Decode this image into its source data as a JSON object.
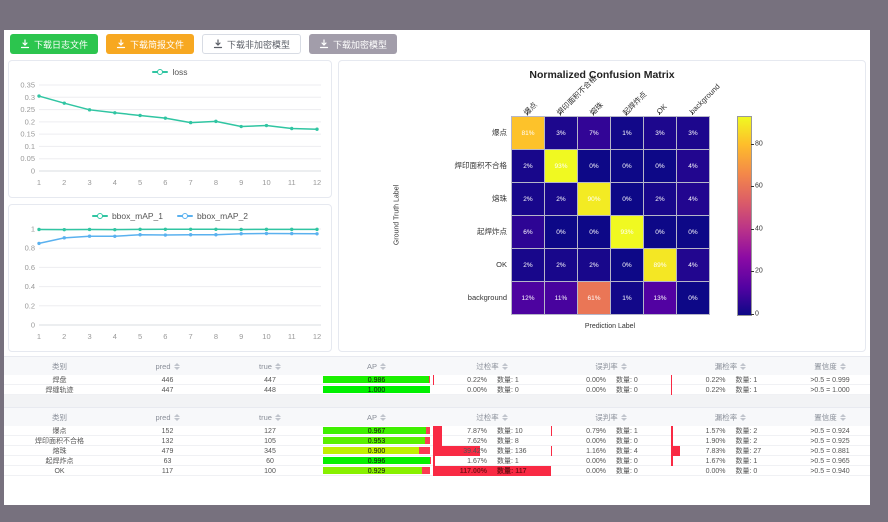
{
  "frame_color": "#77717e",
  "toolbar": {
    "buttons": [
      {
        "label": "下载日志文件",
        "bg": "#2cc54e",
        "kind": "filled"
      },
      {
        "label": "下载简报文件",
        "bg": "#f7a821",
        "kind": "filled"
      },
      {
        "label": "下载非加密模型",
        "bg": "",
        "kind": "plain"
      },
      {
        "label": "下载加密模型",
        "bg": "#a29daa",
        "kind": "filled"
      }
    ]
  },
  "chart_data": [
    {
      "type": "line",
      "title": "",
      "legend_position": "top",
      "x": [
        1,
        2,
        3,
        4,
        5,
        6,
        7,
        8,
        9,
        10,
        11,
        12
      ],
      "series": [
        {
          "name": "loss",
          "color": "#30c5a2",
          "values": [
            0.305,
            0.276,
            0.249,
            0.237,
            0.226,
            0.215,
            0.197,
            0.202,
            0.181,
            0.185,
            0.173,
            0.17
          ]
        }
      ],
      "ylim": [
        0,
        0.35
      ],
      "yticks": [
        0,
        0.05,
        0.1,
        0.15,
        0.2,
        0.25,
        0.3,
        0.35
      ],
      "grid": true
    },
    {
      "type": "line",
      "title": "",
      "legend_position": "top",
      "x": [
        1,
        2,
        3,
        4,
        5,
        6,
        7,
        8,
        9,
        10,
        11,
        12
      ],
      "series": [
        {
          "name": "bbox_mAP_1",
          "color": "#30c5a2",
          "values": [
            0.995,
            0.993,
            0.995,
            0.993,
            0.996,
            0.997,
            0.997,
            0.997,
            0.995,
            0.996,
            0.996,
            0.996
          ]
        },
        {
          "name": "bbox_mAP_2",
          "color": "#5ab1ef",
          "values": [
            0.85,
            0.908,
            0.925,
            0.924,
            0.94,
            0.937,
            0.94,
            0.94,
            0.951,
            0.953,
            0.952,
            0.95
          ]
        }
      ],
      "ylim": [
        0,
        1
      ],
      "yticks": [
        0,
        0.2,
        0.4,
        0.6,
        0.8,
        1
      ],
      "grid": true
    },
    {
      "type": "heatmap",
      "title": "Normalized Confusion Matrix",
      "xlabel": "Prediction Label",
      "ylabel": "Ground Truth Label",
      "labels": [
        "爆点",
        "焊印面积不合格",
        "熔珠",
        "起焊炸点",
        "OK",
        "background"
      ],
      "matrix": [
        [
          81,
          3,
          7,
          1,
          3,
          3
        ],
        [
          2,
          93,
          0,
          0,
          0,
          4
        ],
        [
          2,
          2,
          90,
          0,
          2,
          4
        ],
        [
          6,
          0,
          0,
          93,
          0,
          0
        ],
        [
          2,
          2,
          2,
          0,
          89,
          4
        ],
        [
          12,
          11,
          61,
          1,
          13,
          0
        ]
      ],
      "unit": "%",
      "vmax": 93,
      "colorbar_ticks": [
        0,
        20,
        40,
        60,
        80
      ],
      "colormap": "plasma"
    }
  ],
  "tables": [
    {
      "headers": [
        "类别",
        "pred",
        "true",
        "AP",
        "过检率",
        "误判率",
        "漏检率",
        "置信度"
      ],
      "rows": [
        {
          "name": "焊盘",
          "pred": "446",
          "true": "447",
          "ap": 0.986,
          "ap_label": "0.986",
          "over_pct": "0.22%",
          "over_cnt": "数量: 1",
          "over_val": 0.22,
          "mis_pct": "0.00%",
          "mis_cnt": "数量: 0",
          "mis_val": 0,
          "miss_pct": "0.22%",
          "miss_cnt": "数量: 1",
          "miss_val": 0.22,
          "conf": ">0.5 = 0.999"
        },
        {
          "name": "焊缝轨迹",
          "pred": "447",
          "true": "448",
          "ap": 1.0,
          "ap_label": "1.000",
          "over_pct": "0.00%",
          "over_cnt": "数量: 0",
          "over_val": 0,
          "mis_pct": "0.00%",
          "mis_cnt": "数量: 0",
          "mis_val": 0,
          "miss_pct": "0.22%",
          "miss_cnt": "数量: 1",
          "miss_val": 0.22,
          "conf": ">0.5 = 1.000"
        }
      ]
    },
    {
      "headers": [
        "类别",
        "pred",
        "true",
        "AP",
        "过检率",
        "误判率",
        "漏检率",
        "置信度"
      ],
      "rows": [
        {
          "name": "爆点",
          "pred": "152",
          "true": "127",
          "ap": 0.967,
          "ap_label": "0.967",
          "over_pct": "7.87%",
          "over_cnt": "数量: 10",
          "over_val": 7.87,
          "mis_pct": "0.79%",
          "mis_cnt": "数量: 1",
          "mis_val": 0.79,
          "miss_pct": "1.57%",
          "miss_cnt": "数量: 2",
          "miss_val": 1.57,
          "conf": ">0.5 = 0.924"
        },
        {
          "name": "焊印面积不合格",
          "pred": "132",
          "true": "105",
          "ap": 0.953,
          "ap_label": "0.953",
          "over_pct": "7.62%",
          "over_cnt": "数量: 8",
          "over_val": 7.62,
          "mis_pct": "0.00%",
          "mis_cnt": "数量: 0",
          "mis_val": 0,
          "miss_pct": "1.90%",
          "miss_cnt": "数量: 2",
          "miss_val": 1.9,
          "conf": ">0.5 = 0.925"
        },
        {
          "name": "熔珠",
          "pred": "479",
          "true": "345",
          "ap": 0.9,
          "ap_label": "0.900",
          "over_pct": "39.42%",
          "over_cnt": "数量: 136",
          "over_val": 39.42,
          "mis_pct": "1.16%",
          "mis_cnt": "数量: 4",
          "mis_val": 1.16,
          "miss_pct": "7.83%",
          "miss_cnt": "数量: 27",
          "miss_val": 7.83,
          "conf": ">0.5 = 0.881"
        },
        {
          "name": "起焊炸点",
          "pred": "63",
          "true": "60",
          "ap": 0.996,
          "ap_label": "0.996",
          "over_pct": "1.67%",
          "over_cnt": "数量: 1",
          "over_val": 1.67,
          "mis_pct": "0.00%",
          "mis_cnt": "数量: 0",
          "mis_val": 0,
          "miss_pct": "1.67%",
          "miss_cnt": "数量: 1",
          "miss_val": 1.67,
          "conf": ">0.5 = 0.965"
        },
        {
          "name": "OK",
          "pred": "117",
          "true": "100",
          "ap": 0.929,
          "ap_label": "0.929",
          "over_pct": "117.00%",
          "over_cnt": "数量: 117",
          "over_val": 117,
          "mis_pct": "0.00%",
          "mis_cnt": "数量: 0",
          "mis_val": 0,
          "miss_pct": "0.00%",
          "miss_cnt": "数量: 0",
          "miss_val": 0,
          "conf": ">0.5 = 0.940"
        }
      ]
    }
  ],
  "colors": {
    "ap_rest": "#fb3b52",
    "rate_bar": "#f92a44",
    "teal": "#30c5a2",
    "blue": "#5ab1ef"
  }
}
